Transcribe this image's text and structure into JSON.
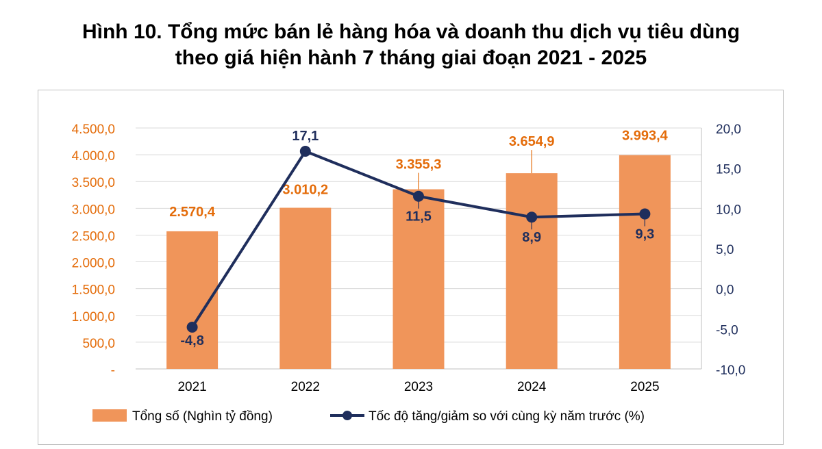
{
  "title_line1": "Hình 10. Tổng mức bán lẻ hàng hóa và doanh thu dịch vụ tiêu dùng",
  "title_line2": "theo giá hiện hành 7 tháng giai đoạn 2021 - 2025",
  "chart_data": {
    "type": "bar",
    "categories": [
      "2021",
      "2022",
      "2023",
      "2024",
      "2025"
    ],
    "series": [
      {
        "name": "Tổng số (Nghìn tỷ đồng)",
        "type": "bar",
        "axis": "left",
        "values": [
          2570.4,
          3010.2,
          3355.3,
          3654.9,
          3993.4
        ],
        "labels": [
          "2.570,4",
          "3.010,2",
          "3.355,3",
          "3.654,9",
          "3.993,4"
        ],
        "color": "#F0955A"
      },
      {
        "name": "Tốc độ tăng/giảm so với cùng kỳ năm trước (%)",
        "type": "line",
        "axis": "right",
        "values": [
          -4.8,
          17.1,
          11.5,
          8.9,
          9.3
        ],
        "labels": [
          "-4,8",
          "17,1",
          "11,5",
          "8,9",
          "9,3"
        ],
        "color": "#1F2E5C"
      }
    ],
    "y_left": {
      "range": [
        0,
        4500
      ],
      "ticks": [
        0,
        500,
        1000,
        1500,
        2000,
        2500,
        3000,
        3500,
        4000,
        4500
      ],
      "tick_labels": [
        "-",
        "500,0",
        "1.000,0",
        "1.500,0",
        "2.000,0",
        "2.500,0",
        "3.000,0",
        "3.500,0",
        "4.000,0",
        "4.500,0"
      ],
      "color": "#E46C0A"
    },
    "y_right": {
      "range": [
        -10,
        20
      ],
      "ticks": [
        -10,
        -5,
        0,
        5,
        10,
        15,
        20
      ],
      "tick_labels": [
        "-10,0",
        "-5,0",
        "0,0",
        "5,0",
        "10,0",
        "15,0",
        "20,0"
      ],
      "color": "#1F2E5C"
    },
    "grid": true,
    "legend_position": "bottom"
  }
}
